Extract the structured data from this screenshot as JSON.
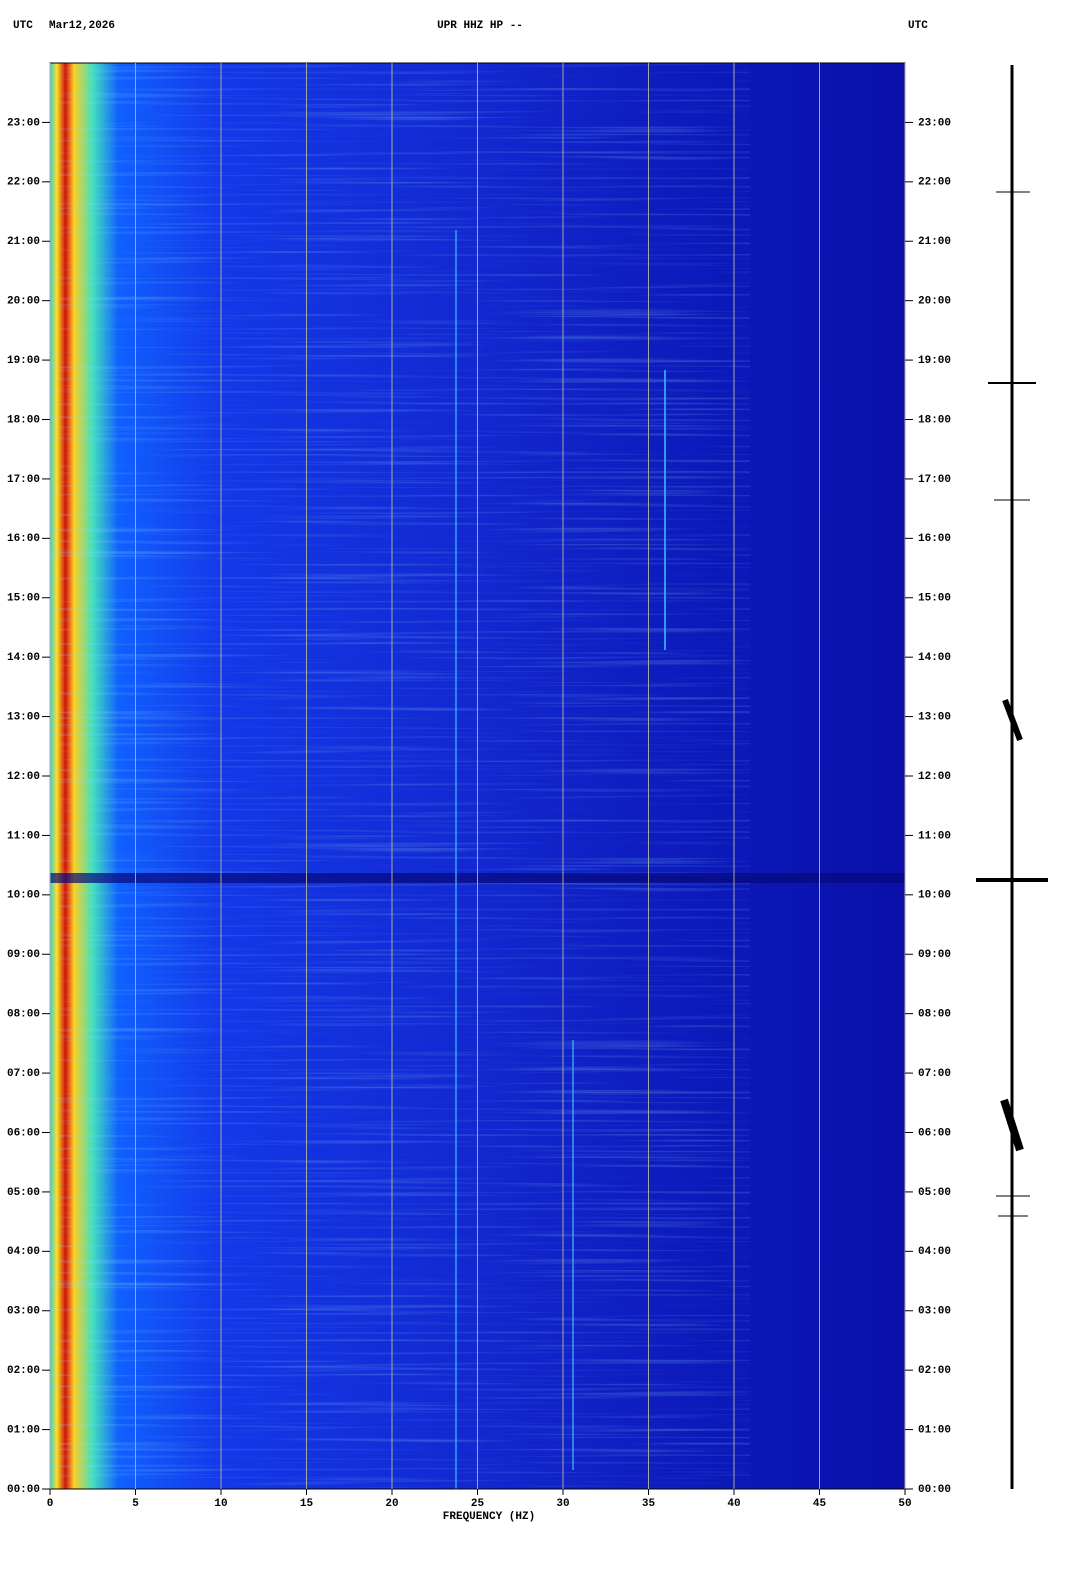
{
  "chart_data": {
    "type": "spectrogram",
    "title": "UPR HHZ HP --",
    "date": "Mar12,2026",
    "timezone": "UTC",
    "xlabel": "FREQUENCY (HZ)",
    "xlim": [
      0,
      50
    ],
    "xticks": [
      0,
      5,
      10,
      15,
      20,
      25,
      30,
      35,
      40,
      45,
      50
    ],
    "ylim": [
      0,
      24
    ],
    "yticks": [
      {
        "value": 0,
        "label": "00:00"
      },
      {
        "value": 1,
        "label": "01:00"
      },
      {
        "value": 2,
        "label": "02:00"
      },
      {
        "value": 3,
        "label": "03:00"
      },
      {
        "value": 4,
        "label": "04:00"
      },
      {
        "value": 5,
        "label": "05:00"
      },
      {
        "value": 6,
        "label": "06:00"
      },
      {
        "value": 7,
        "label": "07:00"
      },
      {
        "value": 8,
        "label": "08:00"
      },
      {
        "value": 9,
        "label": "09:00"
      },
      {
        "value": 10,
        "label": "10:00"
      },
      {
        "value": 11,
        "label": "11:00"
      },
      {
        "value": 12,
        "label": "12:00"
      },
      {
        "value": 13,
        "label": "13:00"
      },
      {
        "value": 14,
        "label": "14:00"
      },
      {
        "value": 15,
        "label": "15:00"
      },
      {
        "value": 16,
        "label": "16:00"
      },
      {
        "value": 17,
        "label": "17:00"
      },
      {
        "value": 18,
        "label": "18:00"
      },
      {
        "value": 19,
        "label": "19:00"
      },
      {
        "value": 20,
        "label": "20:00"
      },
      {
        "value": 21,
        "label": "21:00"
      },
      {
        "value": 22,
        "label": "22:00"
      },
      {
        "value": 23,
        "label": "23:00"
      }
    ],
    "grid": true,
    "grid_color": "#a8a8a0"
  }
}
